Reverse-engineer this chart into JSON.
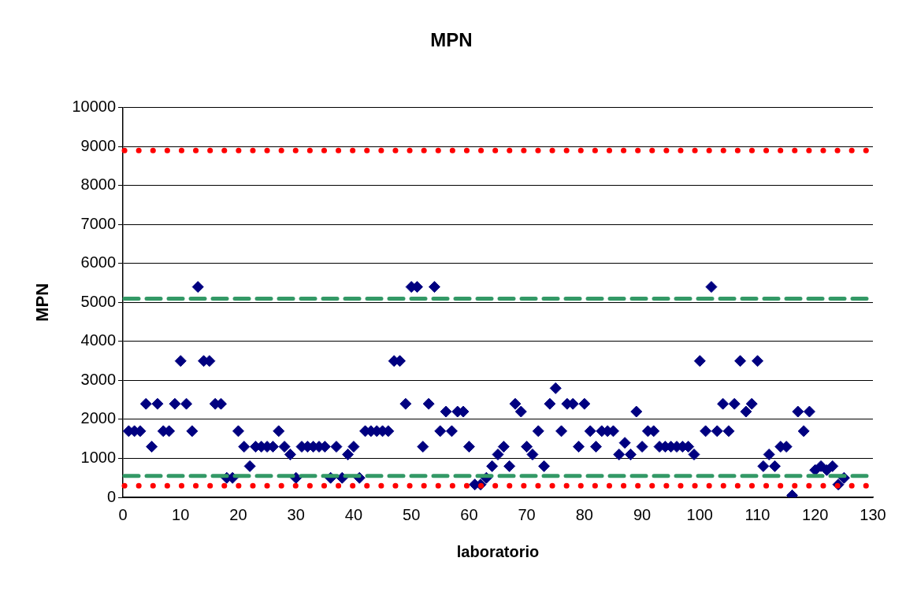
{
  "chart_data": {
    "type": "scatter",
    "title": "MPN",
    "xlabel": "laboratorio",
    "ylabel": "MPN",
    "x": [
      1,
      2,
      3,
      4,
      5,
      6,
      7,
      8,
      9,
      10,
      11,
      12,
      13,
      14,
      15,
      16,
      17,
      18,
      19,
      20,
      21,
      22,
      23,
      24,
      25,
      26,
      27,
      28,
      29,
      30,
      31,
      32,
      33,
      34,
      35,
      36,
      37,
      38,
      39,
      40,
      41,
      42,
      43,
      44,
      45,
      46,
      47,
      48,
      49,
      50,
      51,
      52,
      53,
      54,
      55,
      56,
      57,
      58,
      59,
      60,
      61,
      62,
      63,
      64,
      65,
      66,
      67,
      68,
      69,
      70,
      71,
      72,
      73,
      74,
      75,
      76,
      77,
      78,
      79,
      80,
      81,
      82,
      83,
      84,
      85,
      86,
      87,
      88,
      89,
      90,
      91,
      92,
      93,
      94,
      95,
      96,
      97,
      98,
      99,
      100,
      101,
      102,
      103,
      104,
      105,
      106,
      107,
      108,
      109,
      110,
      111,
      112,
      113,
      114,
      115,
      116,
      117,
      118,
      119,
      120,
      121,
      122,
      123,
      124,
      125
    ],
    "series": [
      {
        "color": "#000080",
        "values": [
          1700,
          1700,
          1700,
          2400,
          1300,
          2400,
          1700,
          1700,
          2400,
          3500,
          2400,
          1700,
          5400,
          3500,
          3500,
          2400,
          2400,
          500,
          500,
          1700,
          1300,
          800,
          1300,
          1300,
          1300,
          1300,
          1700,
          1300,
          1100,
          500,
          1300,
          1300,
          1300,
          1300,
          1300,
          500,
          1300,
          500,
          1100,
          1300,
          500,
          1700,
          1700,
          1700,
          1700,
          1700,
          3500,
          3500,
          2400,
          5400,
          5400,
          1300,
          2400,
          5400,
          1700,
          2200,
          1700,
          2200,
          2200,
          1300,
          330,
          330,
          500,
          800,
          1100,
          1300,
          800,
          2400,
          2200,
          1300,
          1100,
          1700,
          800,
          2400,
          2800,
          1700,
          2400,
          2400,
          1300,
          2400,
          1700,
          1300,
          1700,
          1700,
          1700,
          1100,
          1400,
          1100,
          2200,
          1300,
          1700,
          1700,
          1300,
          1300,
          1300,
          1300,
          1300,
          1300,
          1100,
          3500,
          1700,
          5400,
          1700,
          2400,
          1700,
          2400,
          3500,
          2200,
          2400,
          3500,
          800,
          1100,
          800,
          1300,
          1300,
          50,
          2200,
          1700,
          2200,
          700,
          800,
          700,
          800,
          330,
          500
        ]
      }
    ],
    "marker": "diamond",
    "xlim": [
      0,
      130
    ],
    "xticks": [
      0,
      10,
      20,
      30,
      40,
      50,
      60,
      70,
      80,
      90,
      100,
      110,
      120,
      130
    ],
    "ylim": [
      0,
      10000
    ],
    "yticks": [
      0,
      1000,
      2000,
      3000,
      4000,
      5000,
      6000,
      7000,
      8000,
      9000,
      10000
    ],
    "grid": "y",
    "legend": false,
    "ref_lines": [
      {
        "axis": "y",
        "value": 8900,
        "color": "#ff0000",
        "line_style": "dotted"
      },
      {
        "axis": "y",
        "value": 5100,
        "color": "#339966",
        "line_style": "dashed"
      },
      {
        "axis": "y",
        "value": 550,
        "color": "#339966",
        "line_style": "dashed"
      },
      {
        "axis": "y",
        "value": 300,
        "color": "#ff0000",
        "line_style": "dotted"
      }
    ]
  }
}
